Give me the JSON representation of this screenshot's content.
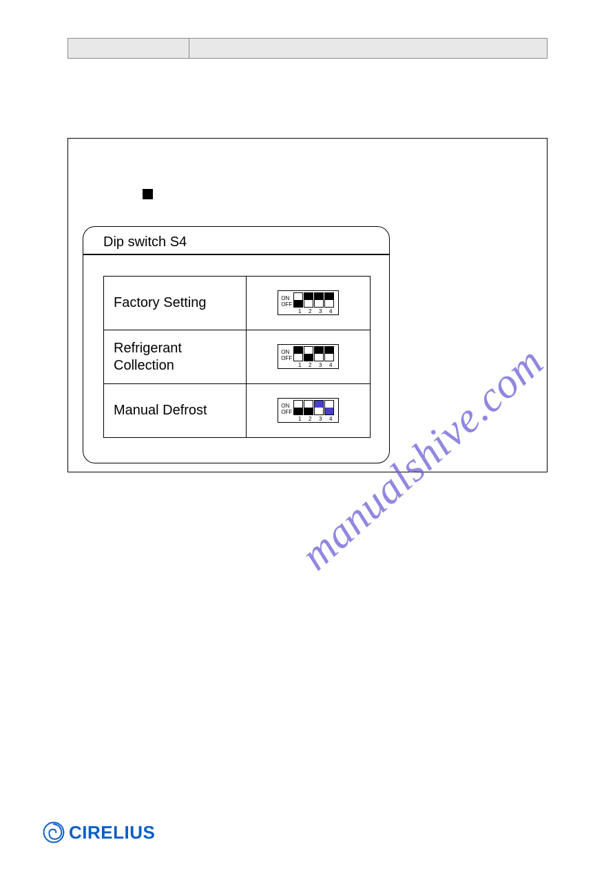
{
  "watermark": {
    "text": "manualshive.com",
    "color": "#6b5fd8"
  },
  "dip_panel": {
    "title": "Dip switch S4",
    "rows": [
      {
        "label": "Factory Setting",
        "switches": [
          {
            "pos": "bottom",
            "color": "#000000"
          },
          {
            "pos": "top",
            "color": "#000000"
          },
          {
            "pos": "top",
            "color": "#000000"
          },
          {
            "pos": "top",
            "color": "#000000"
          }
        ]
      },
      {
        "label": "Refrigerant\nCollection",
        "switches": [
          {
            "pos": "top",
            "color": "#000000"
          },
          {
            "pos": "bottom",
            "color": "#000000"
          },
          {
            "pos": "top",
            "color": "#000000"
          },
          {
            "pos": "top",
            "color": "#000000"
          }
        ]
      },
      {
        "label": "Manual Defrost",
        "switches": [
          {
            "pos": "bottom",
            "color": "#000000"
          },
          {
            "pos": "bottom",
            "color": "#000000"
          },
          {
            "pos": "top",
            "color": "#4a3fc9"
          },
          {
            "pos": "bottom",
            "color": "#4a3fc9"
          }
        ]
      }
    ],
    "on_label": "ON",
    "off_label": "OFF",
    "numbers": [
      "1",
      "2",
      "3",
      "4"
    ]
  },
  "logo": {
    "text": "CIRELIUS",
    "color": "#0a5ec5"
  }
}
